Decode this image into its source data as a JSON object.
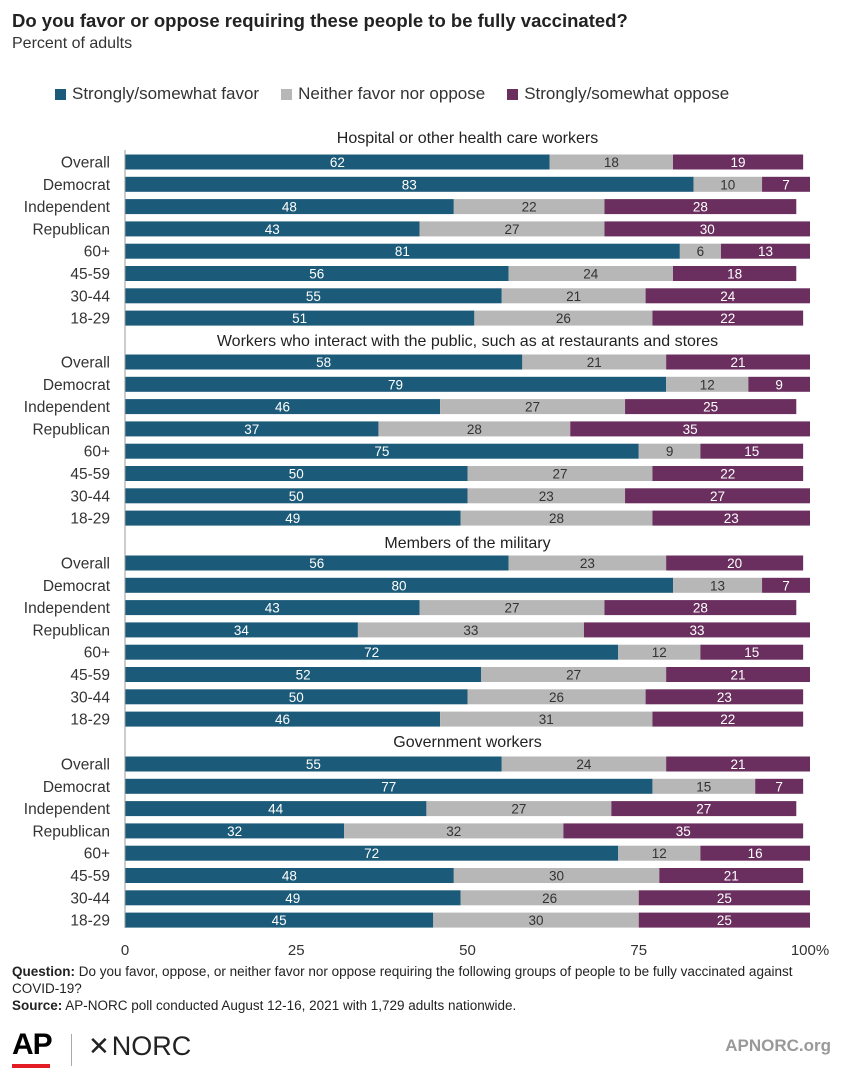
{
  "title": "Do you favor or oppose requiring these people to be fully vaccinated?",
  "subtitle": "Percent of adults",
  "colors": {
    "favor": "#1b5a78",
    "neither": "#b7b7b7",
    "oppose": "#6a2e5f"
  },
  "chart_data": {
    "type": "bar",
    "orientation": "horizontal",
    "stacked": true,
    "xlim": [
      0,
      100
    ],
    "x_ticks": [
      "0",
      "25",
      "50",
      "75",
      "100%"
    ],
    "legend": {
      "position": "top"
    },
    "series_names": [
      "Strongly/somewhat favor",
      "Neither favor nor oppose",
      "Strongly/somewhat oppose"
    ],
    "panels": [
      {
        "title": "Hospital or other health care workers",
        "categories": [
          "Overall",
          "Democrat",
          "Independent",
          "Republican",
          "60+",
          "45-59",
          "30-44",
          "18-29"
        ],
        "favor": [
          62,
          83,
          48,
          43,
          81,
          56,
          55,
          51
        ],
        "neither": [
          18,
          10,
          22,
          27,
          6,
          24,
          21,
          26
        ],
        "oppose": [
          19,
          7,
          28,
          30,
          13,
          18,
          24,
          22
        ]
      },
      {
        "title": "Workers who interact with the public, such as at restaurants and stores",
        "categories": [
          "Overall",
          "Democrat",
          "Independent",
          "Republican",
          "60+",
          "45-59",
          "30-44",
          "18-29"
        ],
        "favor": [
          58,
          79,
          46,
          37,
          75,
          50,
          50,
          49
        ],
        "neither": [
          21,
          12,
          27,
          28,
          9,
          27,
          23,
          28
        ],
        "oppose": [
          21,
          9,
          25,
          35,
          15,
          22,
          27,
          23
        ]
      },
      {
        "title": "Members of the military",
        "categories": [
          "Overall",
          "Democrat",
          "Independent",
          "Republican",
          "60+",
          "45-59",
          "30-44",
          "18-29"
        ],
        "favor": [
          56,
          80,
          43,
          34,
          72,
          52,
          50,
          46
        ],
        "neither": [
          23,
          13,
          27,
          33,
          12,
          27,
          26,
          31
        ],
        "oppose": [
          20,
          7,
          28,
          33,
          15,
          21,
          23,
          22
        ]
      },
      {
        "title": "Government workers",
        "categories": [
          "Overall",
          "Democrat",
          "Independent",
          "Republican",
          "60+",
          "45-59",
          "30-44",
          "18-29"
        ],
        "favor": [
          55,
          77,
          44,
          32,
          72,
          48,
          49,
          45
        ],
        "neither": [
          24,
          15,
          27,
          32,
          12,
          30,
          26,
          30
        ],
        "oppose": [
          21,
          7,
          27,
          35,
          16,
          21,
          25,
          25
        ]
      }
    ]
  },
  "notes": {
    "question_label": "Question:",
    "question_text": "Do you favor, oppose, or neither favor nor oppose requiring the following groups of people to be fully vaccinated against COVID-19?",
    "source_label": "Source:",
    "source_text": "AP-NORC poll conducted August 12-16, 2021 with 1,729 adults nationwide."
  },
  "footer": {
    "ap_logo": "AP",
    "norc_logo": "NORC",
    "website": "APNORC.org"
  }
}
